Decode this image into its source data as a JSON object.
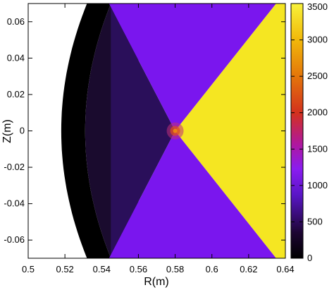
{
  "chart_data": {
    "type": "heatmap",
    "title": "",
    "xlabel": "R(m)",
    "ylabel": "Z(m)",
    "xlim": [
      0.5,
      0.64
    ],
    "ylim": [
      -0.07,
      0.07
    ],
    "x_ticks": [
      0.5,
      0.52,
      0.54,
      0.56,
      0.58,
      0.6,
      0.62,
      0.64
    ],
    "x_tick_labels": [
      "0.5",
      "0.52",
      "0.54",
      "0.56",
      "0.58",
      "0.6",
      "0.62",
      "0.64"
    ],
    "y_ticks": [
      0.06,
      0.04,
      0.02,
      0,
      -0.02,
      -0.04,
      -0.06
    ],
    "y_tick_labels": [
      "0.06",
      "0.04",
      "0.02",
      "0",
      "-0.02",
      "-0.04",
      "-0.06"
    ],
    "colorbar": {
      "range": [
        0,
        3500
      ],
      "ticks": [
        0,
        500,
        1000,
        1500,
        2000,
        2500,
        3000,
        3500
      ],
      "tick_labels": [
        "0",
        "500",
        "1000",
        "1500",
        "2000",
        "2500",
        "3000",
        "3500"
      ]
    },
    "regions": [
      {
        "name": "outer-wall",
        "value": 0
      },
      {
        "name": "inner-band",
        "value": 200
      },
      {
        "name": "left-sector",
        "value": 400
      },
      {
        "name": "top-bottom-sectors",
        "value": 900
      },
      {
        "name": "right-sector",
        "value": 3500
      }
    ],
    "x_point": {
      "R": 0.58,
      "Z": 0
    },
    "boundary_inner_R_at_Z0": 0.518,
    "boundary_band_R_at_Z0": 0.531,
    "sector_upper_right_corner_R": 0.635
  }
}
